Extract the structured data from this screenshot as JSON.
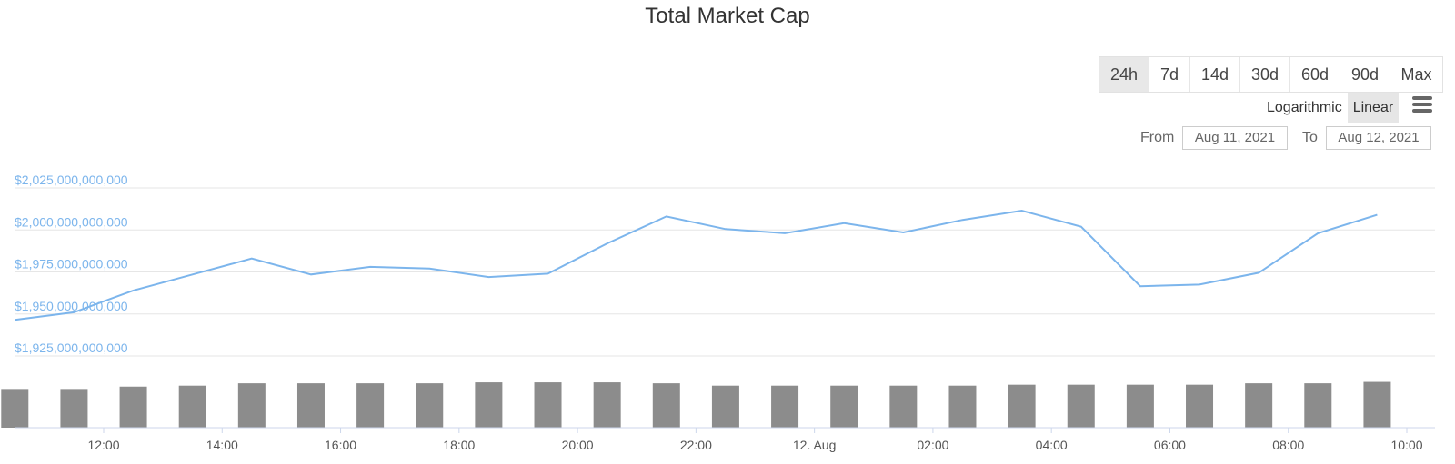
{
  "chart_data": {
    "type": "line",
    "title": "Total Market Cap",
    "xlabel": "",
    "ylabel": "",
    "y_tick_labels": [
      "$2,025,000,000,000",
      "$2,000,000,000,000",
      "$1,975,000,000,000",
      "$1,950,000,000,000",
      "$1,925,000,000,000"
    ],
    "y_tick_values": [
      2025000000000,
      2000000000000,
      1975000000000,
      1950000000000,
      1925000000000
    ],
    "x_tick_labels": [
      "12:00",
      "14:00",
      "16:00",
      "18:00",
      "20:00",
      "22:00",
      "12. Aug",
      "02:00",
      "04:00",
      "06:00",
      "08:00",
      "10:00"
    ],
    "x_tick_hours": [
      12,
      14,
      16,
      18,
      20,
      22,
      24,
      26,
      28,
      30,
      32,
      34
    ],
    "x_hours": [
      10.5,
      11.5,
      12.5,
      13.5,
      14.5,
      15.5,
      16.5,
      17.5,
      18.5,
      19.5,
      20.5,
      21.5,
      22.5,
      23.5,
      24.5,
      25.5,
      26.5,
      27.5,
      28.5,
      29.5,
      30.5,
      31.5,
      32.5,
      33.5
    ],
    "series": [
      {
        "type": "line",
        "values": [
          1946500000000,
          1951000000000,
          1964000000000,
          1973500000000,
          1983000000000,
          1973500000000,
          1978000000000,
          1977000000000,
          1972000000000,
          1974000000000,
          1992000000000,
          2008000000000,
          2000500000000,
          1998000000000,
          2004000000000,
          1998500000000,
          2006000000000,
          2011500000000,
          2002000000000,
          1966500000000,
          1967500000000,
          1974500000000,
          1998000000000,
          2009000000000
        ]
      },
      {
        "type": "column",
        "relative_heights": [
          0.82,
          0.82,
          0.87,
          0.89,
          0.94,
          0.94,
          0.94,
          0.94,
          0.96,
          0.96,
          0.96,
          0.94,
          0.89,
          0.89,
          0.89,
          0.89,
          0.89,
          0.91,
          0.91,
          0.91,
          0.91,
          0.94,
          0.94,
          0.97
        ]
      }
    ],
    "ylim": [
      1920000000000,
      2025000000000
    ],
    "grid": true,
    "legend": "none",
    "colors": {
      "line": "#7cb5ec",
      "bars": "#8c8c8c",
      "grid": "#e6e6e6"
    }
  },
  "controls": {
    "ranges": [
      "24h",
      "7d",
      "14d",
      "30d",
      "60d",
      "90d",
      "Max"
    ],
    "active_range": "24h",
    "scale_log_label": "Logarithmic",
    "scale_linear_label": "Linear",
    "active_scale": "Linear",
    "menu_icon": "hamburger-menu-icon",
    "from_label": "From",
    "from_value": "Aug 11, 2021",
    "to_label": "To",
    "to_value": "Aug 12, 2021"
  }
}
